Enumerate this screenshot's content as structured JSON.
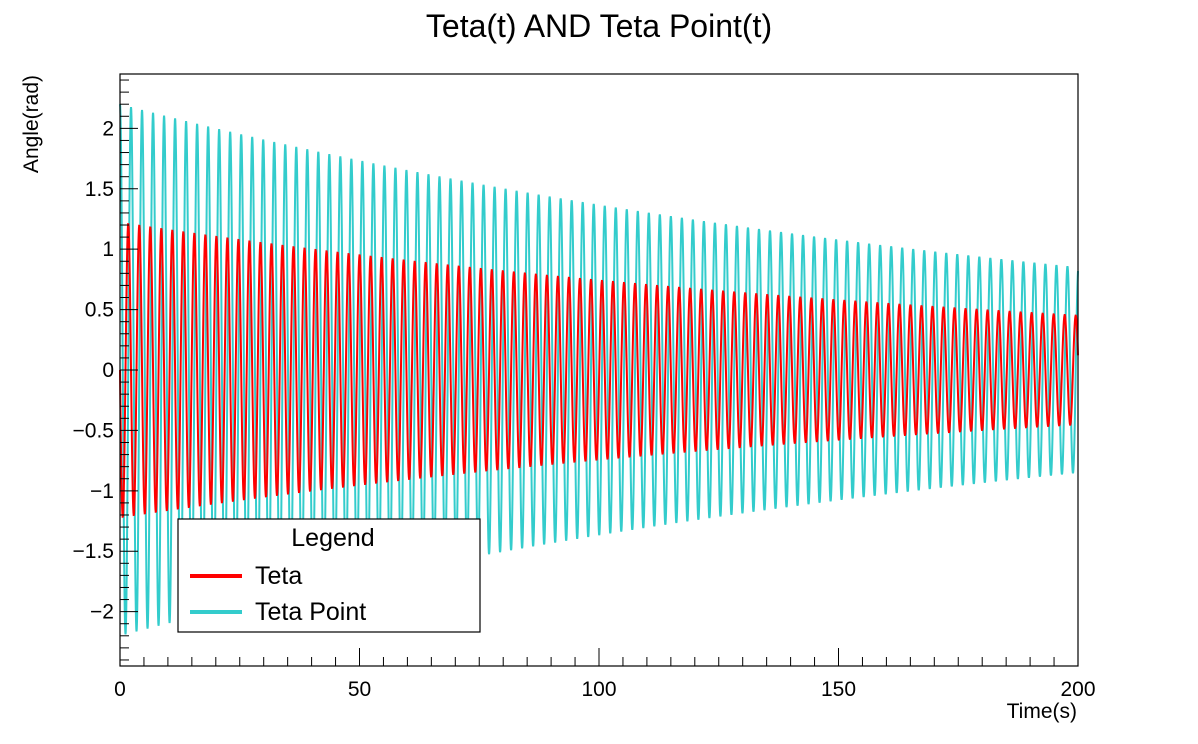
{
  "chart_data": {
    "type": "line",
    "title": "Teta(t) AND Teta Point(t)",
    "xlabel": "Time(s)",
    "ylabel": "Angle(rad)",
    "xlim": [
      0,
      200
    ],
    "ylim": [
      -2.45,
      2.45
    ],
    "x_ticks": [
      0,
      50,
      100,
      150,
      200
    ],
    "x_tick_labels": [
      "0",
      "50",
      "100",
      "150",
      "200"
    ],
    "y_ticks": [
      -2,
      -1.5,
      -1,
      -0.5,
      0,
      0.5,
      1,
      1.5,
      2
    ],
    "y_tick_labels": [
      "−2",
      "−1.5",
      "−1",
      "−0.5",
      "0",
      "0.5",
      "1",
      "1.5",
      "2"
    ],
    "grid": false,
    "legend": {
      "title": "Legend",
      "position": "bottom-left"
    },
    "series": [
      {
        "name": "Teta",
        "color": "#ff0000",
        "kind": "damped-oscillation",
        "initial_amplitude": 1.22,
        "final_amplitude": 0.45,
        "period": 2.3,
        "phase": 1.5708
      },
      {
        "name": "Teta Point",
        "color": "#33cccc",
        "kind": "damped-oscillation",
        "initial_amplitude": 2.2,
        "final_amplitude": 0.85,
        "period": 2.3,
        "phase": 0
      }
    ]
  }
}
